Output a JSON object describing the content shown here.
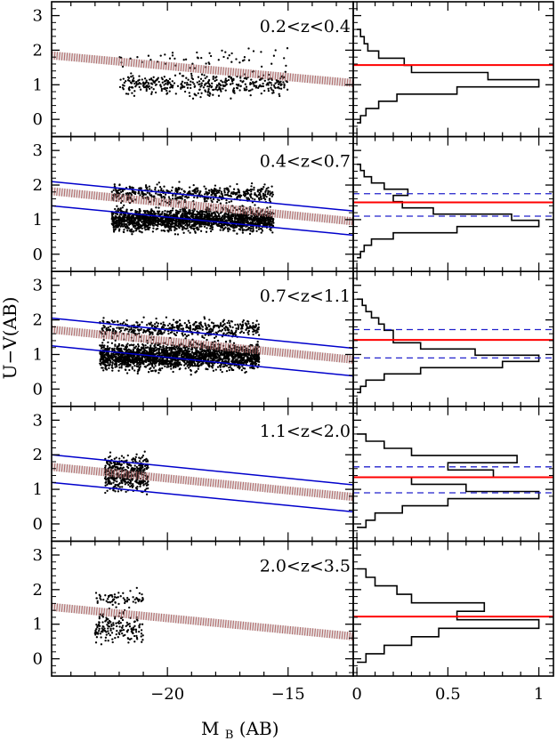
{
  "figure": {
    "x_title": "M",
    "x_title_sub": "B",
    "x_title_suffix": "(AB)",
    "y_title": "U−V(AB)"
  },
  "chart_data": {
    "type": "scatter",
    "shared_x": {
      "ticks": [
        -20,
        -15
      ],
      "tick_labels": [
        "−20",
        "−15"
      ],
      "xlim": [
        -24.8,
        -12.3
      ]
    },
    "shared_y": {
      "ticks": [
        0,
        1,
        2,
        3
      ],
      "tick_labels": [
        "0",
        "1",
        "2",
        "3"
      ],
      "ylim": [
        -0.5,
        3.4
      ]
    },
    "hist_x": {
      "ticks": [
        0,
        0.5,
        1
      ],
      "tick_labels": [
        "0",
        "0.5",
        "1"
      ],
      "xlim": [
        -0.02,
        1.08
      ]
    },
    "colors": {
      "points": "#000000",
      "blue_lines": "#0000cc",
      "red_band": "#b05050",
      "red_line": "#ff0000",
      "dashed": "#2222cc"
    },
    "panels": [
      {
        "label": "0.2<z<0.4",
        "red_band": {
          "y_at_x_min": 1.85,
          "y_at_x_max": 1.05
        },
        "blue_lines": [],
        "hist_red": 1.57,
        "hist_dashed": [],
        "points": {
          "n": 460,
          "x_min": -22.0,
          "x_max": -15.0,
          "y_center": 1.0,
          "y_sigma": 0.22,
          "red_frac": 0.12
        },
        "hist": [
          0.02,
          0.05,
          0.12,
          0.22,
          0.55,
          1.0,
          0.72,
          0.3,
          0.26,
          0.12,
          0.06,
          0.04,
          0.02
        ]
      },
      {
        "label": "0.4<z<0.7",
        "red_band": {
          "y_at_x_min": 1.82,
          "y_at_x_max": 0.95
        },
        "blue_lines": [
          {
            "y_at_x_min": 2.1,
            "y_at_x_max": 1.25
          },
          {
            "y_at_x_min": 1.4,
            "y_at_x_max": 0.55
          }
        ],
        "hist_red": 1.5,
        "hist_dashed": [
          1.75,
          1.1
        ],
        "points": {
          "n": 2400,
          "x_min": -22.3,
          "x_max": -15.6,
          "y_center": 1.0,
          "y_sigma": 0.22,
          "red_frac": 0.2
        },
        "hist": [
          0.02,
          0.04,
          0.08,
          0.2,
          0.55,
          1.0,
          0.85,
          0.42,
          0.25,
          0.2,
          0.28,
          0.15,
          0.08,
          0.04,
          0.02
        ]
      },
      {
        "label": "0.7<z<1.1",
        "red_band": {
          "y_at_x_min": 1.72,
          "y_at_x_max": 0.85
        },
        "blue_lines": [
          {
            "y_at_x_min": 2.05,
            "y_at_x_max": 1.18
          },
          {
            "y_at_x_min": 1.25,
            "y_at_x_max": 0.38
          }
        ],
        "hist_red": 1.42,
        "hist_dashed": [
          1.72,
          0.9
        ],
        "points": {
          "n": 2600,
          "x_min": -22.8,
          "x_max": -16.2,
          "y_center": 0.95,
          "y_sigma": 0.25,
          "red_frac": 0.18
        },
        "hist": [
          0.02,
          0.05,
          0.15,
          0.35,
          0.8,
          1.0,
          0.65,
          0.35,
          0.2,
          0.2,
          0.15,
          0.12,
          0.08,
          0.05,
          0.03
        ]
      },
      {
        "label": "1.1<z<2.0",
        "red_band": {
          "y_at_x_min": 1.65,
          "y_at_x_max": 0.78
        },
        "blue_lines": [
          {
            "y_at_x_min": 2.0,
            "y_at_x_max": 1.13
          },
          {
            "y_at_x_min": 1.2,
            "y_at_x_max": 0.35
          }
        ],
        "hist_red": 1.35,
        "hist_dashed": [
          1.65,
          0.9
        ],
        "points": {
          "n": 420,
          "x_min": -22.6,
          "x_max": -20.8,
          "y_center": 1.35,
          "y_sigma": 0.28,
          "red_frac": 0.3
        },
        "hist": [
          0.05,
          0.1,
          0.25,
          0.5,
          1.0,
          0.6,
          0.3,
          0.75,
          0.5,
          0.88,
          0.3,
          0.15,
          0.05
        ]
      },
      {
        "label": "2.0<z<3.5",
        "red_band": {
          "y_at_x_min": 1.5,
          "y_at_x_max": 0.65
        },
        "blue_lines": [],
        "hist_red": 1.22,
        "hist_dashed": [],
        "points": {
          "n": 230,
          "x_min": -23.0,
          "x_max": -21.0,
          "y_center": 0.9,
          "y_sigma": 0.3,
          "red_frac": 0.25
        },
        "hist": [
          0.05,
          0.15,
          0.3,
          0.45,
          1.0,
          0.55,
          0.7,
          0.3,
          0.22,
          0.1,
          0.05
        ]
      }
    ]
  }
}
